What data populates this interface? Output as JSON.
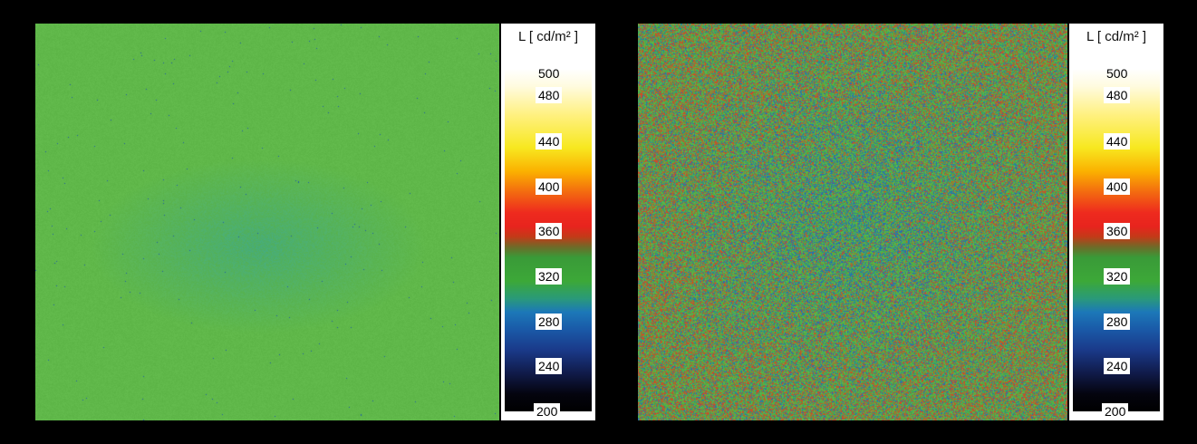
{
  "panels": [
    {
      "id": "left",
      "legend_title": "L [ cd/m² ]",
      "ticks": [
        "500",
        "480",
        "440",
        "400",
        "360",
        "320",
        "280",
        "240",
        "200"
      ]
    },
    {
      "id": "right",
      "legend_title": "L [ cd/m² ]",
      "ticks": [
        "500",
        "480",
        "440",
        "400",
        "360",
        "320",
        "280",
        "240",
        "200"
      ]
    }
  ],
  "colormap": {
    "min": 200,
    "max": 500,
    "unit": "cd/m²"
  }
}
